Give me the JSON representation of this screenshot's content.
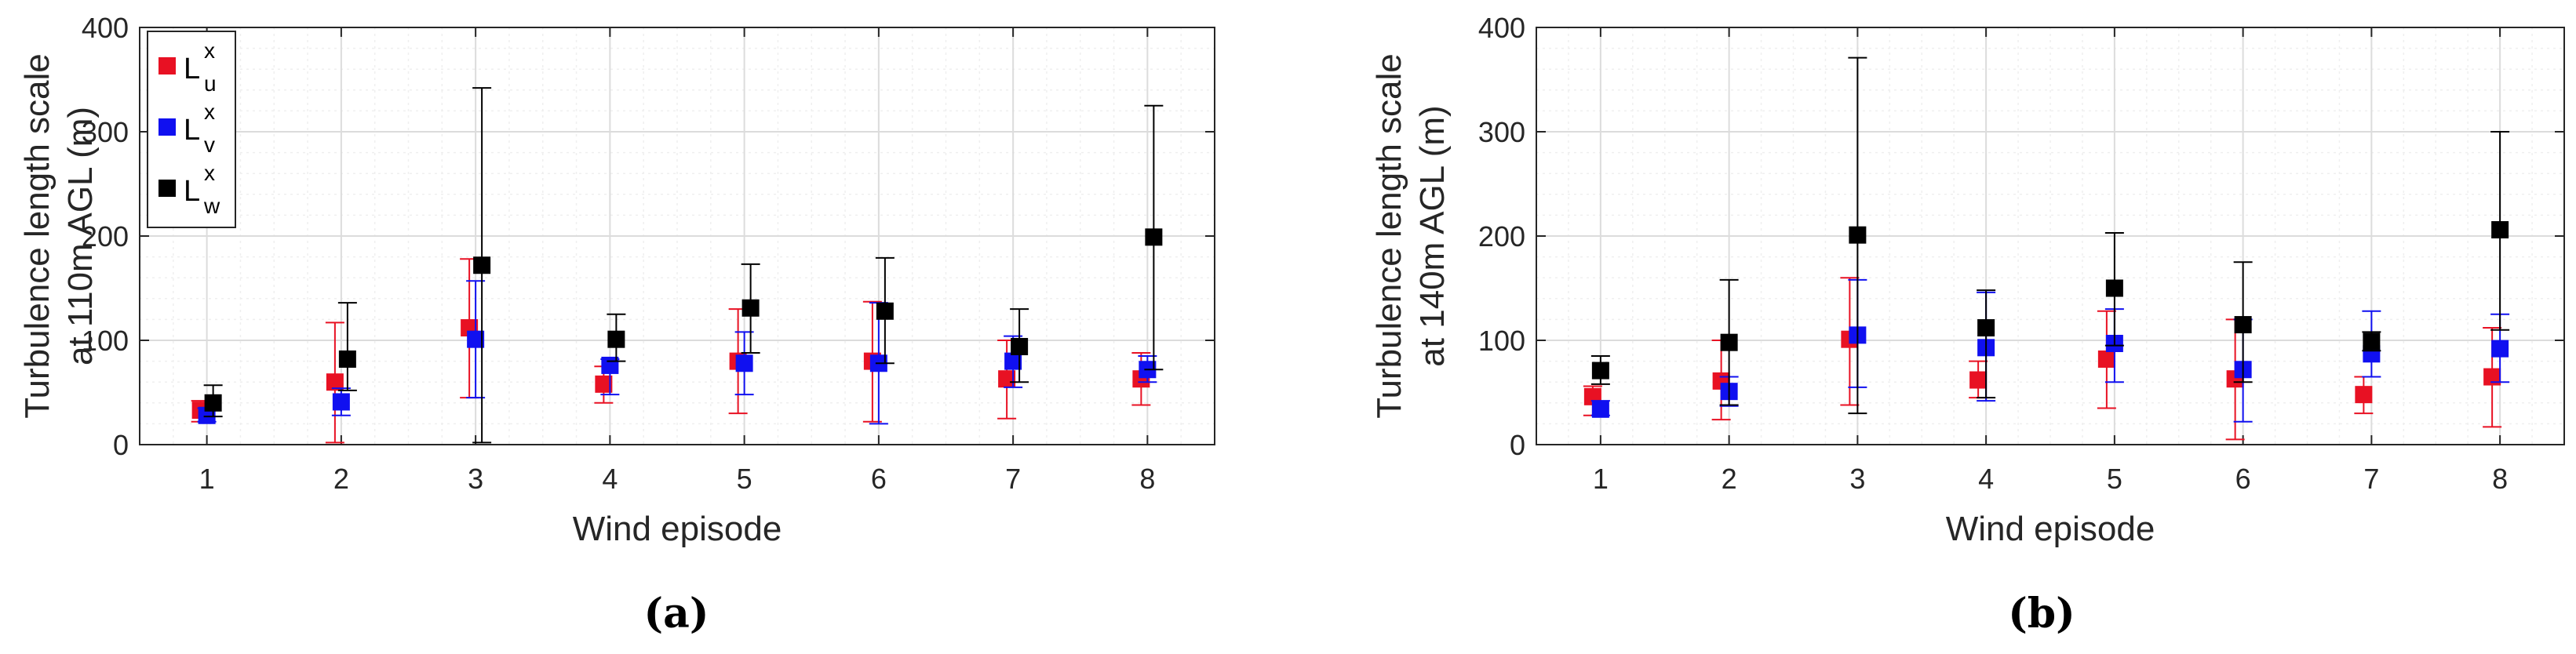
{
  "chart_data": [
    {
      "type": "scatter",
      "panel_label": "(a)",
      "xlabel": "Wind episode",
      "ylabel_lines": [
        "Turbulence length scale",
        "at 110m AGL (m)"
      ],
      "xlim": [
        0.5,
        8.5
      ],
      "ylim": [
        0,
        400
      ],
      "xticks": [
        "1",
        "2",
        "3",
        "4",
        "5",
        "6",
        "7",
        "8"
      ],
      "yticks": [
        "0",
        "100",
        "200",
        "300",
        "400"
      ],
      "grid": true,
      "minor_grid": true,
      "legend_placement": "top-left",
      "legend": [
        {
          "main": "L",
          "sup": "x",
          "sub": "u",
          "color": "#e81123"
        },
        {
          "main": "L",
          "sup": "x",
          "sub": "v",
          "color": "#1010f0"
        },
        {
          "main": "L",
          "sup": "x",
          "sub": "w",
          "color": "#000000"
        }
      ],
      "series": [
        {
          "color": "#e81123",
          "x": [
            1,
            2,
            3,
            4,
            5,
            6,
            7,
            8
          ],
          "y": [
            33,
            60,
            112,
            58,
            80,
            80,
            63,
            63
          ],
          "low": [
            22,
            2,
            45,
            40,
            30,
            22,
            25,
            38
          ],
          "high": [
            42,
            117,
            178,
            75,
            130,
            137,
            100,
            88
          ]
        },
        {
          "color": "#1010f0",
          "x": [
            1,
            2,
            3,
            4,
            5,
            6,
            7,
            8
          ],
          "y": [
            28,
            41,
            101,
            76,
            78,
            78,
            80,
            72
          ],
          "low": [
            22,
            28,
            45,
            48,
            48,
            20,
            55,
            60
          ],
          "high": [
            35,
            54,
            157,
            82,
            108,
            136,
            104,
            85
          ]
        },
        {
          "color": "#000000",
          "x": [
            1,
            2,
            3,
            4,
            5,
            6,
            7,
            8
          ],
          "y": [
            40,
            82,
            172,
            101,
            131,
            128,
            94,
            199
          ],
          "low": [
            27,
            52,
            2,
            80,
            88,
            78,
            60,
            72
          ],
          "high": [
            57,
            136,
            342,
            125,
            173,
            179,
            130,
            325
          ]
        }
      ]
    },
    {
      "type": "scatter",
      "panel_label": "(b)",
      "xlabel": "Wind episode",
      "ylabel_lines": [
        "Turbulence length scale",
        "at 140m AGL (m)"
      ],
      "xlim": [
        0.5,
        8.5
      ],
      "ylim": [
        0,
        400
      ],
      "xticks": [
        "1",
        "2",
        "3",
        "4",
        "5",
        "6",
        "7",
        "8"
      ],
      "yticks": [
        "0",
        "100",
        "200",
        "300",
        "400"
      ],
      "grid": true,
      "minor_grid": true,
      "series": [
        {
          "color": "#e81123",
          "x": [
            1,
            2,
            3,
            4,
            5,
            6,
            7,
            8
          ],
          "y": [
            46,
            61,
            101,
            62,
            82,
            63,
            48,
            65
          ],
          "low": [
            28,
            24,
            38,
            45,
            35,
            5,
            30,
            17
          ],
          "high": [
            56,
            100,
            160,
            80,
            128,
            120,
            65,
            112
          ]
        },
        {
          "color": "#1010f0",
          "x": [
            1,
            2,
            3,
            4,
            5,
            6,
            7,
            8
          ],
          "y": [
            34,
            51,
            105,
            93,
            97,
            72,
            87,
            92
          ],
          "low": [
            28,
            37,
            55,
            42,
            60,
            22,
            65,
            60
          ],
          "high": [
            42,
            65,
            158,
            146,
            130,
            120,
            128,
            125
          ]
        },
        {
          "color": "#000000",
          "x": [
            1,
            2,
            3,
            4,
            5,
            6,
            7,
            8
          ],
          "y": [
            71,
            98,
            201,
            112,
            150,
            115,
            99,
            206
          ],
          "low": [
            58,
            38,
            30,
            45,
            95,
            60,
            90,
            110
          ],
          "high": [
            85,
            158,
            371,
            148,
            203,
            175,
            108,
            300
          ]
        }
      ]
    }
  ]
}
